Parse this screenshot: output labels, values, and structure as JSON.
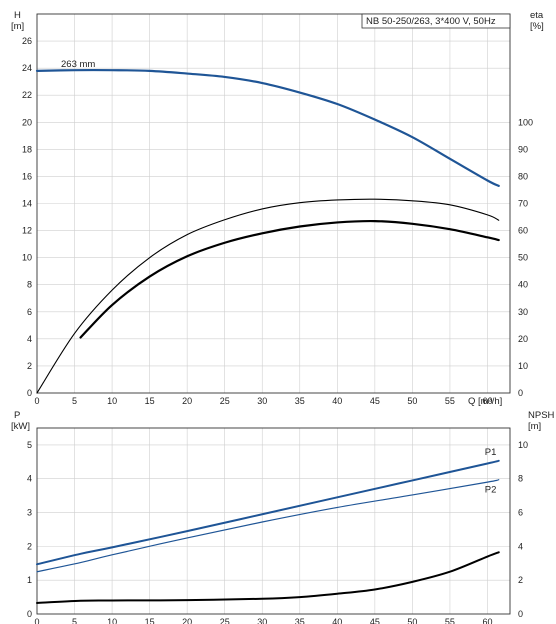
{
  "chart_data": [
    {
      "type": "line",
      "id": "top",
      "x_axis": {
        "label": "Q [m³/h]",
        "range": [
          0,
          63
        ],
        "ticks": [
          0,
          5,
          10,
          15,
          20,
          25,
          30,
          35,
          40,
          45,
          50,
          55,
          60
        ]
      },
      "y_left": {
        "label_lines": [
          "H",
          "[m]"
        ],
        "range": [
          0,
          28
        ],
        "ticks": [
          0,
          2,
          4,
          6,
          8,
          10,
          12,
          14,
          16,
          18,
          20,
          22,
          24,
          26
        ]
      },
      "y_right": {
        "label_lines": [
          "eta",
          "[%]"
        ],
        "range": [
          0,
          140
        ],
        "ticks": [
          0,
          10,
          20,
          30,
          40,
          50,
          60,
          70,
          80,
          90,
          100
        ]
      },
      "legend_box": "NB 50-250/263, 3*400 V, 50Hz",
      "grid": true,
      "series": [
        {
          "role": "head",
          "axis": "left",
          "color": "#1f5596",
          "width": 2.2,
          "label": "263 mm",
          "x": [
            0,
            5,
            10,
            15,
            20,
            25,
            30,
            35,
            40,
            45,
            50,
            55,
            60,
            61.5
          ],
          "y": [
            23.8,
            23.85,
            23.85,
            23.8,
            23.6,
            23.35,
            22.9,
            22.2,
            21.35,
            20.2,
            18.9,
            17.3,
            15.7,
            15.3
          ]
        },
        {
          "role": "efficiency-thin",
          "axis": "right",
          "color": "#000000",
          "width": 1.1,
          "x": [
            0,
            5,
            10,
            15,
            20,
            25,
            30,
            35,
            40,
            45,
            50,
            55,
            60,
            61.5
          ],
          "y": [
            0,
            22,
            38,
            50,
            58.5,
            64,
            68,
            70.3,
            71.3,
            71.6,
            71,
            69.5,
            65.8,
            63.8
          ]
        },
        {
          "role": "efficiency-thick",
          "axis": "right",
          "color": "#000000",
          "width": 2.2,
          "x": [
            5.8,
            10,
            15,
            20,
            25,
            30,
            35,
            40,
            45,
            50,
            55,
            60,
            61.5
          ],
          "y": [
            20.5,
            32.5,
            43,
            50.5,
            55.5,
            59,
            61.5,
            63,
            63.5,
            62.5,
            60.5,
            57.5,
            56.5
          ]
        }
      ]
    },
    {
      "type": "line",
      "id": "bottom",
      "x_axis": {
        "range": [
          0,
          63
        ],
        "ticks": [
          0,
          5,
          10,
          15,
          20,
          25,
          30,
          35,
          40,
          45,
          50,
          55,
          60
        ]
      },
      "y_left": {
        "label_lines": [
          "P",
          "[kW]"
        ],
        "range": [
          0,
          5.5
        ],
        "ticks": [
          0,
          1,
          2,
          3,
          4,
          5
        ]
      },
      "y_right": {
        "label_lines": [
          "NPSH",
          "[m]"
        ],
        "range": [
          0,
          11
        ],
        "ticks": [
          0,
          2,
          4,
          6,
          8,
          10
        ]
      },
      "grid": true,
      "series": [
        {
          "role": "P1",
          "name": "P1",
          "axis": "left",
          "color": "#1f5596",
          "width": 2.0,
          "x": [
            0,
            5.8,
            10,
            20,
            30,
            40,
            50,
            60,
            61.5
          ],
          "y": [
            1.47,
            1.78,
            1.97,
            2.45,
            2.95,
            3.45,
            3.95,
            4.45,
            4.53
          ]
        },
        {
          "role": "P1-thin",
          "axis": "left",
          "color": "#1f5596",
          "width": 1.0,
          "x": [
            0,
            5.8,
            10,
            20,
            30,
            40,
            50,
            60,
            61.5
          ],
          "y": [
            1.47,
            1.78,
            1.97,
            2.45,
            2.95,
            3.45,
            3.95,
            4.45,
            4.53
          ]
        },
        {
          "role": "P2",
          "name": "P2",
          "axis": "left",
          "color": "#1f5596",
          "width": 1.2,
          "x": [
            0,
            5.8,
            10,
            20,
            30,
            40,
            50,
            60,
            61.5
          ],
          "y": [
            1.25,
            1.52,
            1.75,
            2.25,
            2.72,
            3.15,
            3.52,
            3.9,
            3.97
          ]
        },
        {
          "role": "NPSH",
          "axis": "right",
          "color": "#000000",
          "width": 2.0,
          "x": [
            0,
            5.8,
            10,
            20,
            30,
            35,
            40,
            45,
            50,
            55,
            60,
            61.5
          ],
          "y": [
            0.65,
            0.78,
            0.8,
            0.82,
            0.9,
            1.0,
            1.2,
            1.45,
            1.9,
            2.5,
            3.4,
            3.65
          ]
        }
      ]
    }
  ]
}
